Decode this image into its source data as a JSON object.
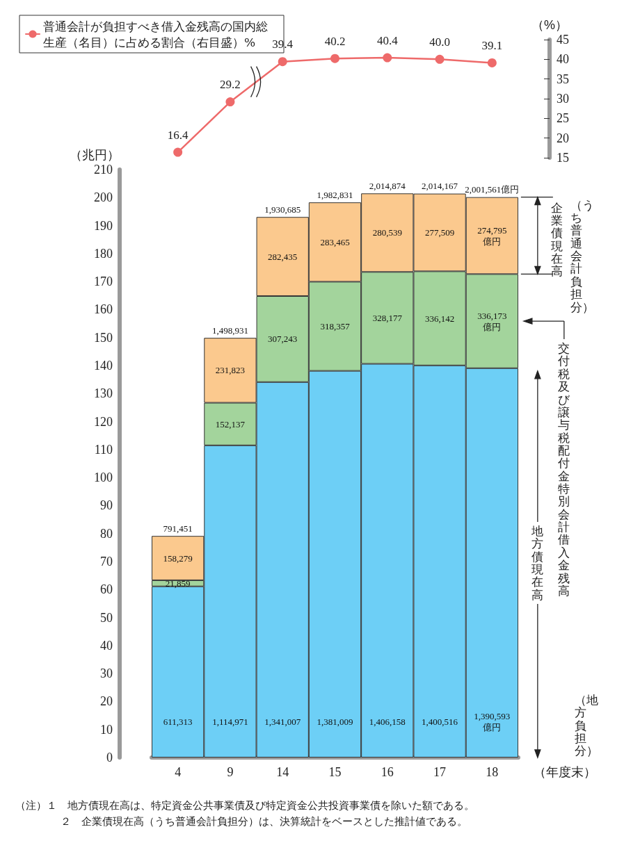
{
  "chart_data": [
    {
      "type": "line",
      "categories": [
        "4",
        "9",
        "14",
        "15",
        "16",
        "17",
        "18"
      ],
      "ylabel": "（%）",
      "ylim": [
        15,
        45
      ],
      "yticks": [
        15,
        20,
        25,
        30,
        35,
        40,
        45
      ],
      "tick_labels": "y",
      "grid": false,
      "legend": "top left",
      "marker": "circle",
      "line_style": "solid",
      "series": [
        {
          "name": "普通会計が負担すべき借入金残高の国内総生産（名目）に占める割合（右目盛）%",
          "color": "#ee6a6a",
          "values": [
            16.4,
            29.2,
            39.4,
            40.2,
            40.4,
            40.0,
            39.1
          ],
          "value_labels": [
            "16.4",
            "29.2",
            "39.4",
            "40.2",
            "40.4",
            "40.0",
            "39.1"
          ]
        }
      ]
    },
    {
      "type": "bar",
      "stacked": true,
      "categories": [
        "4",
        "9",
        "14",
        "15",
        "16",
        "17",
        "18"
      ],
      "xlabel": "（年度末）",
      "ylabel": "（兆円）",
      "ylim": [
        0,
        210
      ],
      "yticks": [
        0,
        10,
        20,
        30,
        40,
        50,
        60,
        70,
        80,
        90,
        100,
        110,
        120,
        130,
        140,
        150,
        160,
        170,
        180,
        190,
        200,
        210
      ],
      "grid": false,
      "series": [
        {
          "name": "地方債現在高",
          "color": "#6dcff6",
          "values": [
            61.1313,
            111.4971,
            134.1007,
            138.1009,
            140.6158,
            140.0516,
            139.0593
          ]
        },
        {
          "name": "交付税及び譲与税配付金特別会計借入金残高（地方負担分）",
          "color": "#a3d49c",
          "values": [
            2.1859,
            15.2137,
            30.7243,
            31.8357,
            32.8177,
            33.6142,
            33.6173
          ]
        },
        {
          "name": "企業債現在高（うち普通会計負担分）",
          "color": "#fbc98e",
          "values": [
            15.8279,
            23.1823,
            28.2435,
            28.3465,
            28.0539,
            27.7509,
            27.4795
          ]
        }
      ],
      "annotations": [
        {
          "text": "791,451",
          "x": "4",
          "y": 79.1451
        },
        {
          "text": "1,498,931",
          "x": "9",
          "y": 149.8931
        },
        {
          "text": "1,930,685",
          "x": "14",
          "y": 193.0685
        },
        {
          "text": "1,982,831",
          "x": "15",
          "y": 198.2831
        },
        {
          "text": "2,014,874",
          "x": "16",
          "y": 201.4874
        },
        {
          "text": "2,014,167",
          "x": "17",
          "y": 201.4167
        },
        {
          "text": "2,001,561億円",
          "x": "18",
          "y": 200.1561
        },
        "611,313",
        "1,114,971",
        "1,341,007",
        "1,381,009",
        "1,406,158",
        "1,400,516",
        "1,390,593\n億円",
        "21,859",
        "152,137",
        "307,243",
        "318,357",
        "328,177",
        "336,142",
        "336,173\n億円",
        "158,279",
        "231,823",
        "282,435",
        "283,465",
        "280,539",
        "277,509",
        "274,795\n億円",
        "（注）１　地方債現在高は、特定資金公共事業債及び特定資金公共投資事業債を除いた額である。",
        "２　企業債現在高（うち普通会計負担分）は、決算統計をベースとした推計値である。"
      ]
    }
  ]
}
